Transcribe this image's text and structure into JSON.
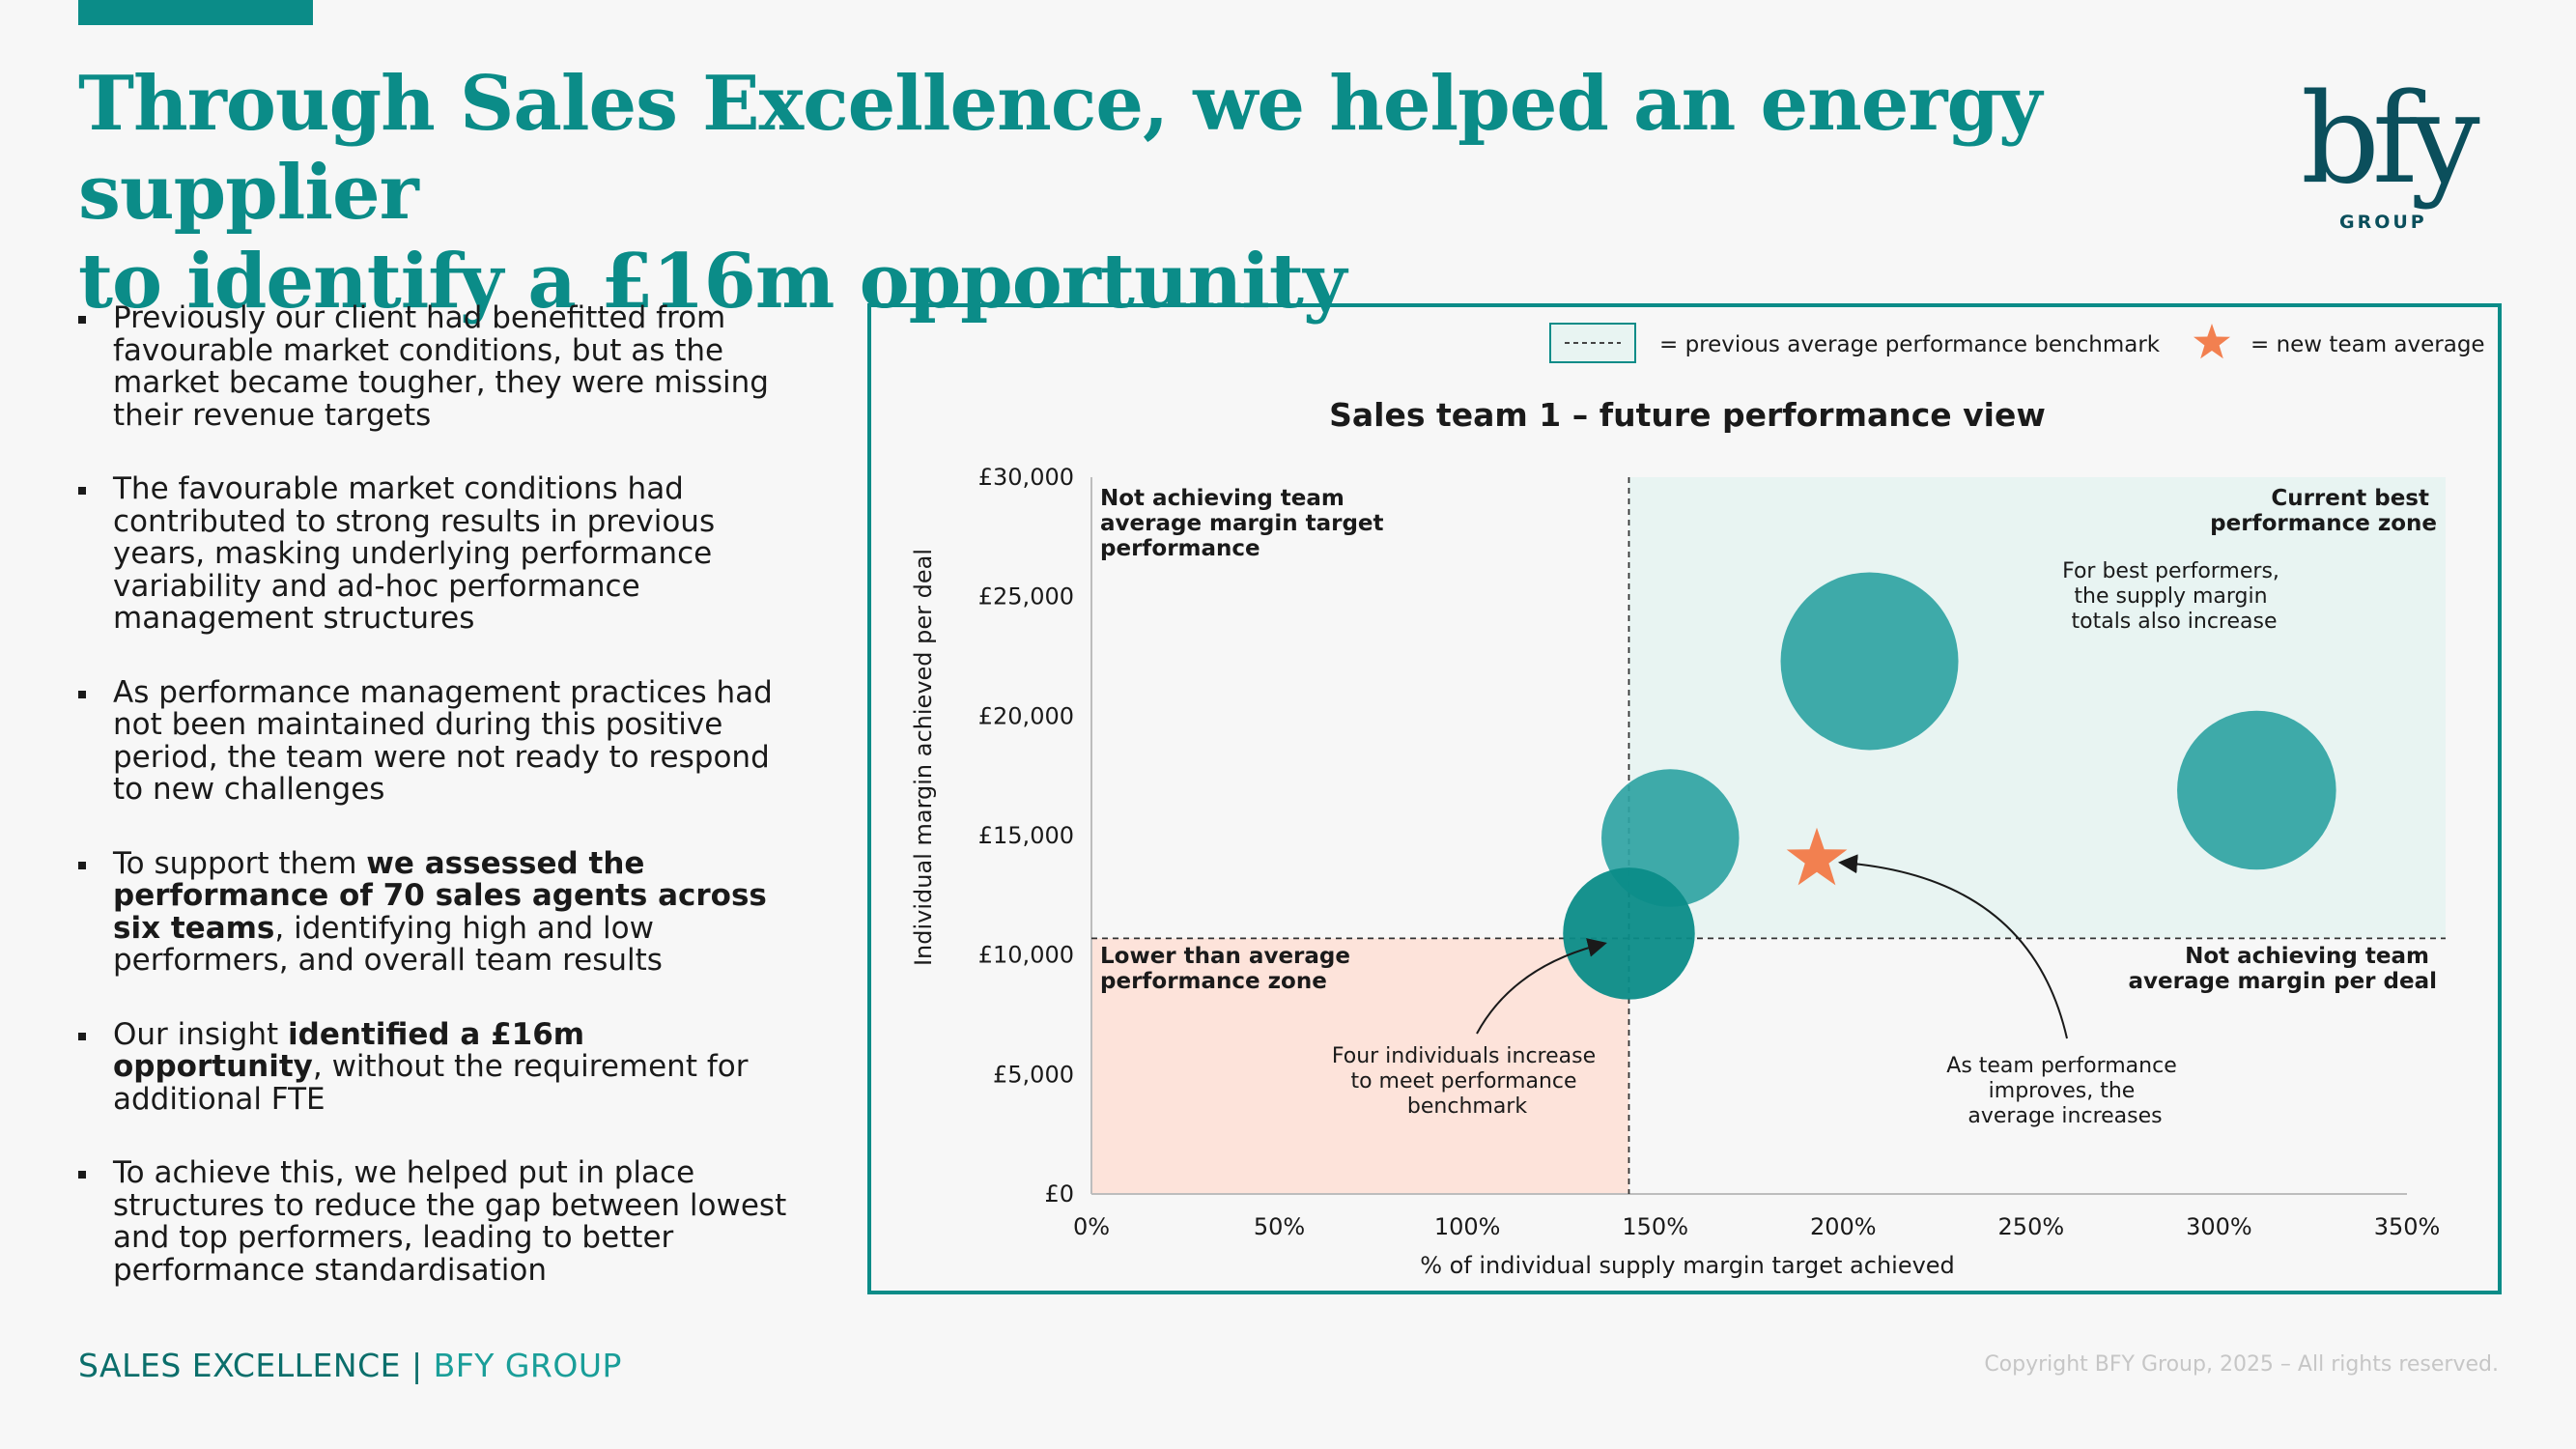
{
  "header": {
    "title_line1": "Through Sales Excellence, we helped an energy supplier",
    "title_line2": "to identify a £16m opportunity"
  },
  "logo": {
    "mark": "bfy",
    "sub": "GROUP"
  },
  "bullets": [
    {
      "pre": "Previously our client had benefitted from favourable market conditions, but as the market became tougher, they were missing their revenue targets",
      "bold": "",
      "post": ""
    },
    {
      "pre": "The favourable market conditions had contributed to strong results in previous years, masking underlying performance variability and ad-hoc performance management structures",
      "bold": "",
      "post": ""
    },
    {
      "pre": "As performance management practices had not been maintained during this positive period, the team were not ready to respond to new challenges",
      "bold": "",
      "post": ""
    },
    {
      "pre": "To support them ",
      "bold": "we assessed the performance of 70 sales agents across six teams",
      "post": ", identifying high and low performers, and overall team results"
    },
    {
      "pre": "Our insight ",
      "bold": "identified a £16m opportunity",
      "post": ", without the requirement for additional FTE"
    },
    {
      "pre": "To achieve this, we helped put in place structures to reduce the gap between lowest and top performers, leading to better performance standardisation",
      "bold": "",
      "post": ""
    }
  ],
  "legend": {
    "benchmark_label": "= previous average performance benchmark",
    "star_label": "= new team average"
  },
  "chart_data": {
    "type": "scatter",
    "title": "Sales team 1 – future performance view",
    "xlabel": "% of individual supply margin target achieved",
    "ylabel": "Individual margin achieved per deal",
    "xlim": [
      0,
      3.5
    ],
    "ylim": [
      0,
      30000
    ],
    "x_ticks": [
      0,
      0.5,
      1,
      1.5,
      2,
      2.5,
      3,
      3.5
    ],
    "x_tick_labels": [
      "0%",
      "50%",
      "100%",
      "150%",
      "200%",
      "250%",
      "300%",
      "350%"
    ],
    "y_ticks": [
      0,
      5000,
      10000,
      15000,
      20000,
      25000,
      30000
    ],
    "y_tick_labels": [
      "£0",
      "£5,000",
      "£10,000",
      "£15,000",
      "£20,000",
      "£25,000",
      "£30,000"
    ],
    "benchmark": {
      "x": 1.43,
      "y": 10700
    },
    "bubbles": [
      {
        "x": 1.54,
        "y": 14900,
        "size": 0.6
      },
      {
        "x": 1.43,
        "y": 10900,
        "size": 0.55
      },
      {
        "x": 2.07,
        "y": 22300,
        "size": 1.0
      },
      {
        "x": 3.1,
        "y": 16900,
        "size": 0.8
      }
    ],
    "team_average": {
      "x": 1.93,
      "y": 14000
    },
    "zones": {
      "top_left": "Not achieving team average margin target performance",
      "top_right": "Current best performance zone",
      "bottom_left": "Lower than average performance zone",
      "bottom_right": "Not achieving team average margin per deal"
    },
    "annotations": {
      "best_performers": "For best performers, the supply margin totals also increase",
      "four_individuals": "Four individuals increase to meet performance benchmark",
      "team_performance": "As team performance improves, the average increases"
    },
    "colors": {
      "bubble": "#2fa3a3",
      "bubble_dark": "#0b8c88",
      "star": "#f28050",
      "good_zone": "#e8f4f2",
      "bad_zone": "#fde3da",
      "frame": "#0b8c88"
    }
  },
  "footer": {
    "left_section": "SALES EXCELLENCE",
    "separator": " | ",
    "left_brand": "BFY GROUP",
    "copyright": "Copyright BFY Group, 2025 – All rights reserved."
  }
}
